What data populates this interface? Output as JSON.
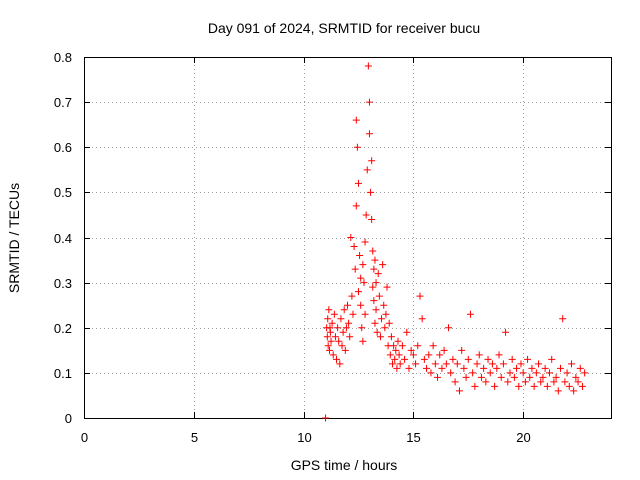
{
  "chart_data": {
    "type": "scatter",
    "title": "Day 091 of 2024, SRMTID for receiver bucu",
    "xlabel": "GPS time / hours",
    "ylabel": "SRMTID / TECUs",
    "xlim": [
      0,
      24
    ],
    "ylim": [
      0,
      0.8
    ],
    "x_ticks": [
      0,
      5,
      10,
      15,
      20
    ],
    "x_tick_labels": [
      "0",
      "5",
      "10",
      "15",
      "20"
    ],
    "y_ticks": [
      0,
      0.1,
      0.2,
      0.3,
      0.4,
      0.5,
      0.6,
      0.7,
      0.8
    ],
    "y_tick_labels": [
      "0",
      "0.1",
      "0.2",
      "0.3",
      "0.4",
      "0.5",
      "0.6",
      "0.7",
      "0.8"
    ],
    "grid": true,
    "marker": "plus",
    "series": [
      {
        "name": "SRMTID",
        "color": "#ff0000",
        "x": [
          11.0,
          11.05,
          11.08,
          11.1,
          11.12,
          11.15,
          11.18,
          11.2,
          11.22,
          11.25,
          11.3,
          11.35,
          11.4,
          11.45,
          11.5,
          11.55,
          11.6,
          11.65,
          11.7,
          11.75,
          11.8,
          11.85,
          11.9,
          11.95,
          12.0,
          12.05,
          12.1,
          12.15,
          12.2,
          12.25,
          12.3,
          12.35,
          12.4,
          12.4,
          12.45,
          12.5,
          12.5,
          12.55,
          12.6,
          12.6,
          12.65,
          12.7,
          12.7,
          12.75,
          12.8,
          12.8,
          12.85,
          12.9,
          12.95,
          13.0,
          13.0,
          13.05,
          13.1,
          13.1,
          13.15,
          13.15,
          13.2,
          13.2,
          13.25,
          13.25,
          13.3,
          13.3,
          13.35,
          13.4,
          13.45,
          13.5,
          13.55,
          13.6,
          13.65,
          13.7,
          13.75,
          13.8,
          13.85,
          13.9,
          13.95,
          14.0,
          14.05,
          14.1,
          14.15,
          14.2,
          14.25,
          14.3,
          14.35,
          14.4,
          14.5,
          14.6,
          14.7,
          14.8,
          14.9,
          15.0,
          15.1,
          15.2,
          15.3,
          15.4,
          15.5,
          15.6,
          15.7,
          15.8,
          15.9,
          16.0,
          16.1,
          16.2,
          16.3,
          16.4,
          16.5,
          16.6,
          16.7,
          16.8,
          16.9,
          17.0,
          17.1,
          17.2,
          17.3,
          17.4,
          17.5,
          17.6,
          17.7,
          17.8,
          17.9,
          18.0,
          18.1,
          18.2,
          18.3,
          18.4,
          18.5,
          18.6,
          18.7,
          18.8,
          18.9,
          19.0,
          19.1,
          19.2,
          19.3,
          19.4,
          19.5,
          19.6,
          19.7,
          19.8,
          19.9,
          20.0,
          20.1,
          20.2,
          20.3,
          20.4,
          20.5,
          20.6,
          20.7,
          20.8,
          20.9,
          21.0,
          21.1,
          21.2,
          21.3,
          21.4,
          21.5,
          21.6,
          21.7,
          21.8,
          21.9,
          22.0,
          22.1,
          22.2,
          22.3,
          22.4,
          22.5,
          22.6,
          22.7,
          22.8
        ],
        "y": [
          0.0,
          0.2,
          0.18,
          0.22,
          0.16,
          0.24,
          0.15,
          0.2,
          0.19,
          0.17,
          0.21,
          0.14,
          0.23,
          0.18,
          0.13,
          0.2,
          0.17,
          0.12,
          0.22,
          0.16,
          0.19,
          0.24,
          0.15,
          0.2,
          0.25,
          0.21,
          0.18,
          0.4,
          0.27,
          0.23,
          0.38,
          0.33,
          0.66,
          0.47,
          0.6,
          0.52,
          0.28,
          0.36,
          0.31,
          0.25,
          0.2,
          0.34,
          0.17,
          0.3,
          0.23,
          0.39,
          0.45,
          0.55,
          0.78,
          0.7,
          0.63,
          0.5,
          0.57,
          0.44,
          0.37,
          0.29,
          0.33,
          0.26,
          0.21,
          0.35,
          0.3,
          0.24,
          0.19,
          0.32,
          0.27,
          0.18,
          0.22,
          0.34,
          0.25,
          0.2,
          0.23,
          0.29,
          0.16,
          0.21,
          0.14,
          0.18,
          0.12,
          0.16,
          0.13,
          0.15,
          0.11,
          0.17,
          0.14,
          0.12,
          0.16,
          0.13,
          0.19,
          0.11,
          0.15,
          0.14,
          0.12,
          0.16,
          0.27,
          0.22,
          0.13,
          0.11,
          0.14,
          0.1,
          0.16,
          0.12,
          0.09,
          0.14,
          0.11,
          0.15,
          0.12,
          0.2,
          0.1,
          0.13,
          0.08,
          0.12,
          0.06,
          0.15,
          0.11,
          0.09,
          0.13,
          0.23,
          0.1,
          0.07,
          0.12,
          0.14,
          0.09,
          0.11,
          0.08,
          0.13,
          0.1,
          0.12,
          0.07,
          0.11,
          0.14,
          0.09,
          0.12,
          0.19,
          0.08,
          0.1,
          0.13,
          0.09,
          0.11,
          0.07,
          0.12,
          0.1,
          0.08,
          0.13,
          0.09,
          0.11,
          0.07,
          0.1,
          0.12,
          0.08,
          0.09,
          0.11,
          0.07,
          0.1,
          0.13,
          0.08,
          0.09,
          0.06,
          0.11,
          0.22,
          0.08,
          0.1,
          0.07,
          0.12,
          0.06,
          0.09,
          0.08,
          0.11,
          0.07,
          0.1
        ]
      }
    ]
  }
}
